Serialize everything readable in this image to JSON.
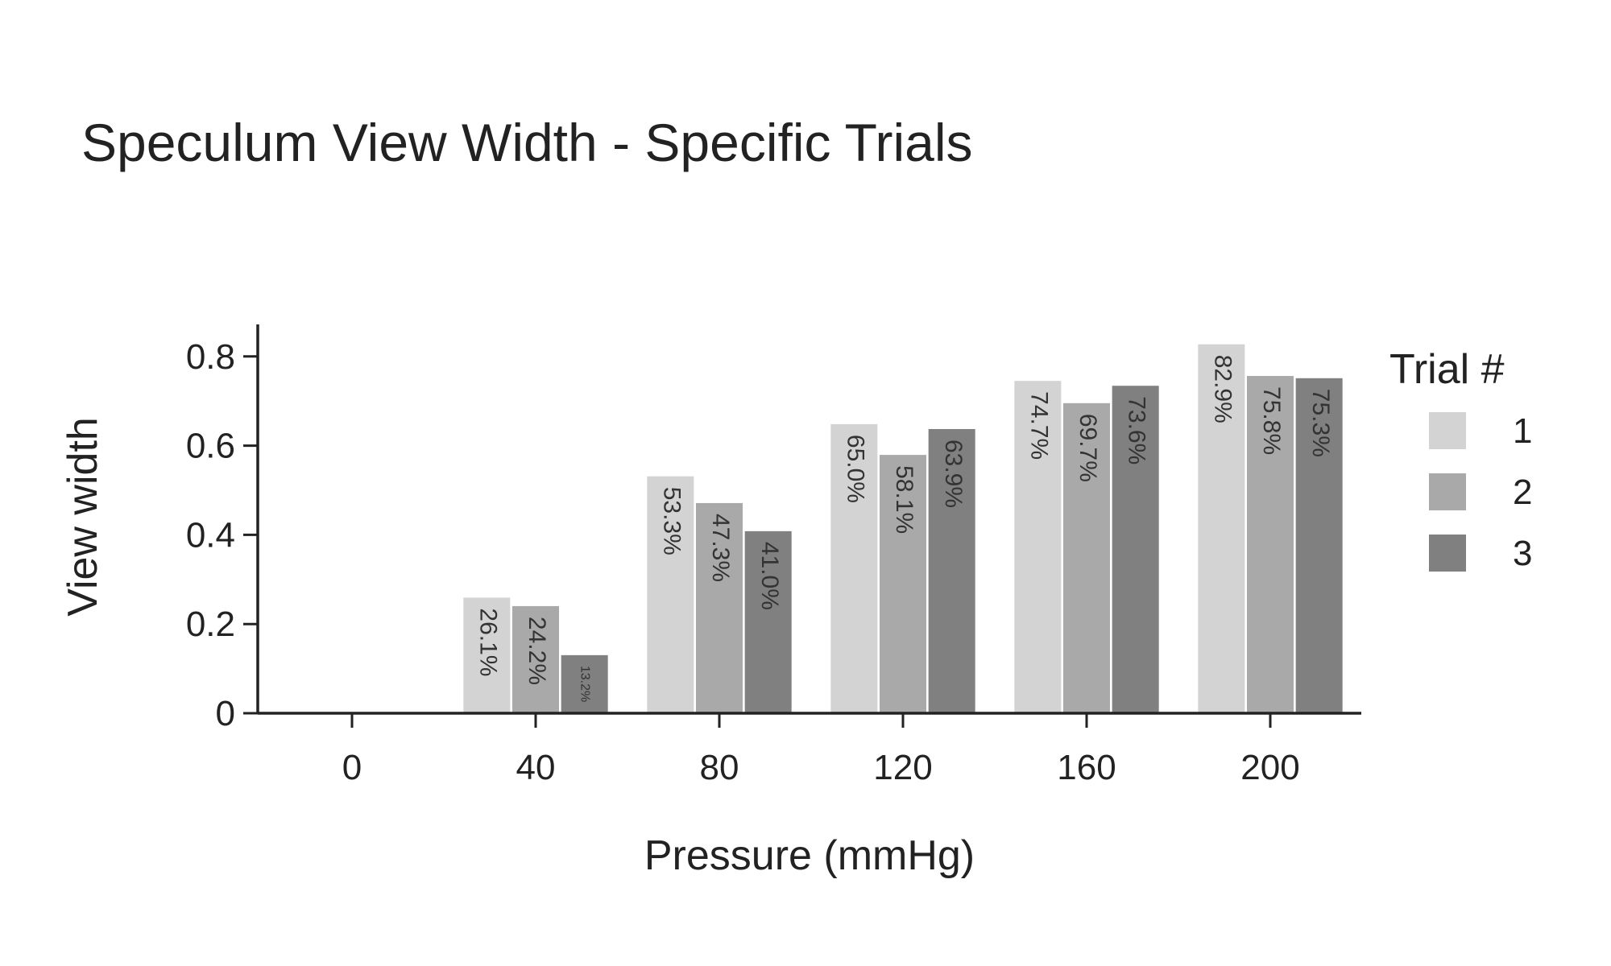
{
  "chart_data": {
    "type": "bar",
    "title": "Speculum View Width - Specific Trials",
    "xlabel": "Pressure (mmHg)",
    "ylabel": "View width",
    "categories": [
      "0",
      "40",
      "80",
      "120",
      "160",
      "200"
    ],
    "ylim": [
      0,
      0.87
    ],
    "yticks": [
      0,
      0.2,
      0.4,
      0.6,
      0.8
    ],
    "ytick_labels": [
      "0",
      "0.2",
      "0.4",
      "0.6",
      "0.8"
    ],
    "grid": false,
    "legend": {
      "title": "Trial #",
      "position": "right"
    },
    "series": [
      {
        "name": "1",
        "color": "#d3d3d3",
        "values": [
          null,
          0.261,
          0.533,
          0.65,
          0.747,
          0.829
        ],
        "labels": [
          "",
          "26.1%",
          "53.3%",
          "65.0%",
          "74.7%",
          "82.9%"
        ]
      },
      {
        "name": "2",
        "color": "#a9a9a9",
        "values": [
          null,
          0.242,
          0.473,
          0.581,
          0.697,
          0.758
        ],
        "labels": [
          "",
          "24.2%",
          "47.3%",
          "58.1%",
          "69.7%",
          "75.8%"
        ]
      },
      {
        "name": "3",
        "color": "#808080",
        "values": [
          null,
          0.132,
          0.41,
          0.639,
          0.736,
          0.753
        ],
        "labels": [
          "",
          "13.2%",
          "41.0%",
          "63.9%",
          "73.6%",
          "75.3%"
        ]
      }
    ]
  }
}
